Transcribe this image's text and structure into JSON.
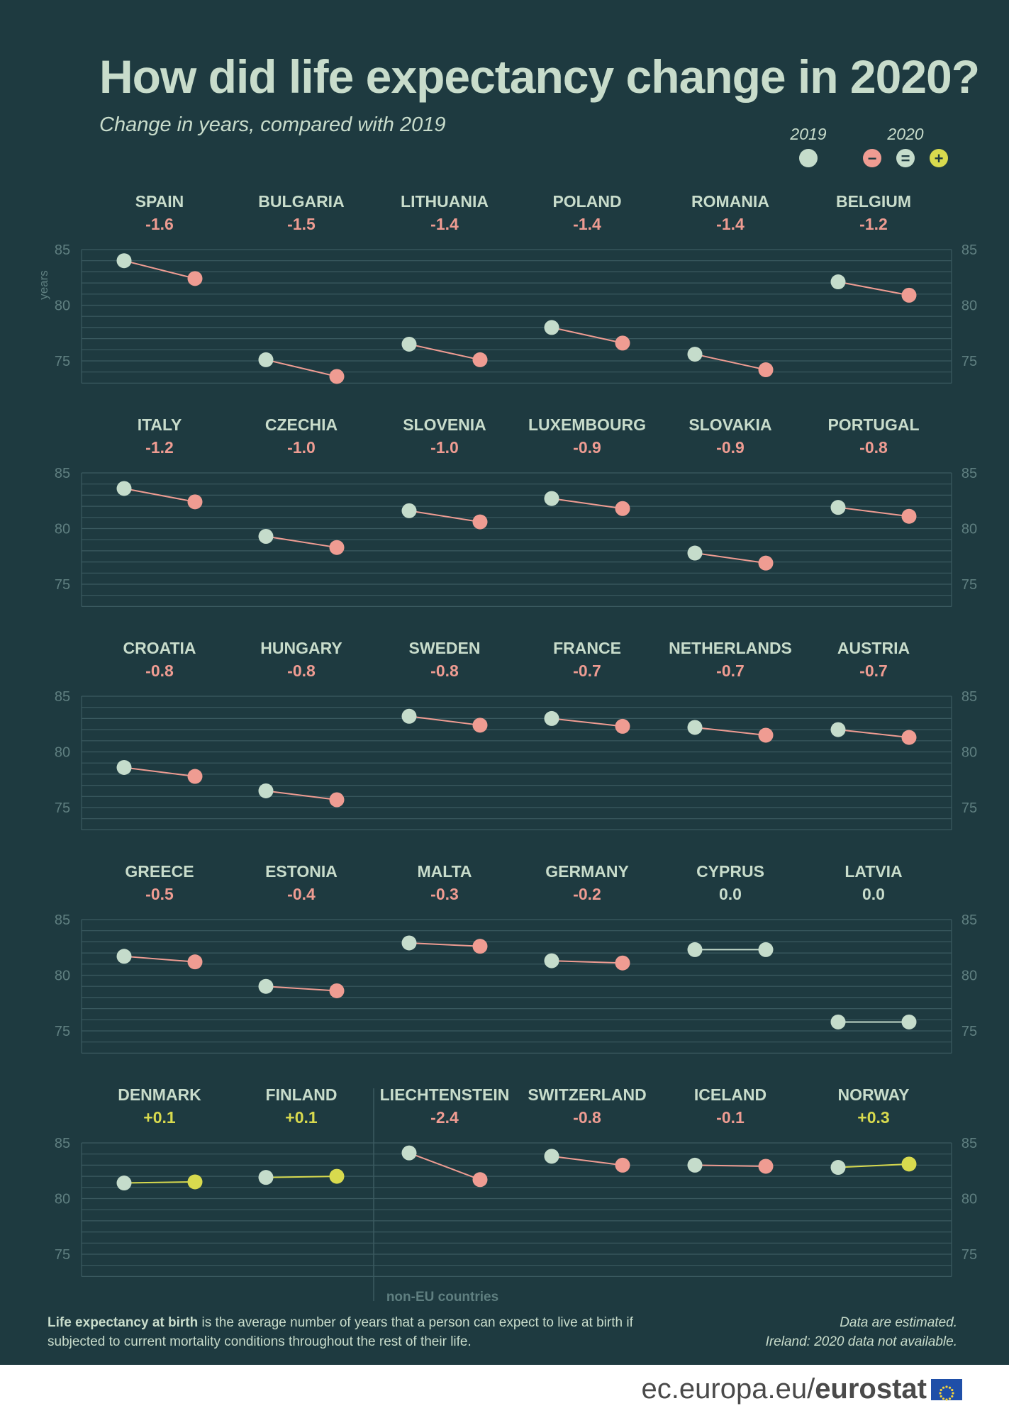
{
  "title": "How did life expectancy change in 2020?",
  "subtitle": "Change in years, compared with 2019",
  "legend": {
    "label_2019": "2019",
    "label_2020": "2020",
    "minus_symbol": "−",
    "equal_symbol": "=",
    "plus_symbol": "+"
  },
  "colors": {
    "background": "#1e3a40",
    "grid": "#3b5a60",
    "text": "#c8dccb",
    "axis_text": "#5f7f80",
    "point_2019": "#c5dccb",
    "point_decrease": "#ef9c92",
    "point_equal": "#c5dccb",
    "point_increase": "#d8da4e"
  },
  "chart_data": {
    "type": "slope",
    "ylim": [
      73,
      85.5
    ],
    "yticks": [
      75,
      80,
      85
    ],
    "ylabel": "years",
    "x": [
      "2019",
      "2020"
    ],
    "countries": [
      {
        "name": "SPAIN",
        "change": "-1.6",
        "v2019": 84.0,
        "v2020": 82.4
      },
      {
        "name": "BULGARIA",
        "change": "-1.5",
        "v2019": 75.1,
        "v2020": 73.6
      },
      {
        "name": "LITHUANIA",
        "change": "-1.4",
        "v2019": 76.5,
        "v2020": 75.1
      },
      {
        "name": "POLAND",
        "change": "-1.4",
        "v2019": 78.0,
        "v2020": 76.6
      },
      {
        "name": "ROMANIA",
        "change": "-1.4",
        "v2019": 75.6,
        "v2020": 74.2
      },
      {
        "name": "BELGIUM",
        "change": "-1.2",
        "v2019": 82.1,
        "v2020": 80.9
      },
      {
        "name": "ITALY",
        "change": "-1.2",
        "v2019": 83.6,
        "v2020": 82.4
      },
      {
        "name": "CZECHIA",
        "change": "-1.0",
        "v2019": 79.3,
        "v2020": 78.3
      },
      {
        "name": "SLOVENIA",
        "change": "-1.0",
        "v2019": 81.6,
        "v2020": 80.6
      },
      {
        "name": "LUXEMBOURG",
        "change": "-0.9",
        "v2019": 82.7,
        "v2020": 81.8
      },
      {
        "name": "SLOVAKIA",
        "change": "-0.9",
        "v2019": 77.8,
        "v2020": 76.9
      },
      {
        "name": "PORTUGAL",
        "change": "-0.8",
        "v2019": 81.9,
        "v2020": 81.1
      },
      {
        "name": "CROATIA",
        "change": "-0.8",
        "v2019": 78.6,
        "v2020": 77.8
      },
      {
        "name": "HUNGARY",
        "change": "-0.8",
        "v2019": 76.5,
        "v2020": 75.7
      },
      {
        "name": "SWEDEN",
        "change": "-0.8",
        "v2019": 83.2,
        "v2020": 82.4
      },
      {
        "name": "FRANCE",
        "change": "-0.7",
        "v2019": 83.0,
        "v2020": 82.3
      },
      {
        "name": "NETHERLANDS",
        "change": "-0.7",
        "v2019": 82.2,
        "v2020": 81.5
      },
      {
        "name": "AUSTRIA",
        "change": "-0.7",
        "v2019": 82.0,
        "v2020": 81.3
      },
      {
        "name": "GREECE",
        "change": "-0.5",
        "v2019": 81.7,
        "v2020": 81.2
      },
      {
        "name": "ESTONIA",
        "change": "-0.4",
        "v2019": 79.0,
        "v2020": 78.6
      },
      {
        "name": "MALTA",
        "change": "-0.3",
        "v2019": 82.9,
        "v2020": 82.6
      },
      {
        "name": "GERMANY",
        "change": "-0.2",
        "v2019": 81.3,
        "v2020": 81.1
      },
      {
        "name": "CYPRUS",
        "change": "0.0",
        "v2019": 82.3,
        "v2020": 82.3
      },
      {
        "name": "LATVIA",
        "change": "0.0",
        "v2019": 75.8,
        "v2020": 75.8
      },
      {
        "name": "DENMARK",
        "change": "+0.1",
        "v2019": 81.4,
        "v2020": 81.5
      },
      {
        "name": "FINLAND",
        "change": "+0.1",
        "v2019": 81.9,
        "v2020": 82.0
      },
      {
        "name": "LIECHTENSTEIN",
        "change": "-2.4",
        "v2019": 84.1,
        "v2020": 81.7
      },
      {
        "name": "SWITZERLAND",
        "change": "-0.8",
        "v2019": 83.8,
        "v2020": 83.0
      },
      {
        "name": "ICELAND",
        "change": "-0.1",
        "v2019": 83.0,
        "v2020": 82.9
      },
      {
        "name": "NORWAY",
        "change": "+0.3",
        "v2019": 82.8,
        "v2020": 83.1
      }
    ],
    "non_eu_label": "non-EU countries"
  },
  "footnote": {
    "bold": "Life expectancy at birth",
    "rest": " is the average number of years that a person can expect to live at birth if subjected to current mortality conditions throughout the rest of their life.",
    "right_line1": "Data are estimated.",
    "right_line2": "Ireland: 2020 data not available."
  },
  "footer": {
    "url": "ec.europa.eu/",
    "brand": "eurostat"
  }
}
